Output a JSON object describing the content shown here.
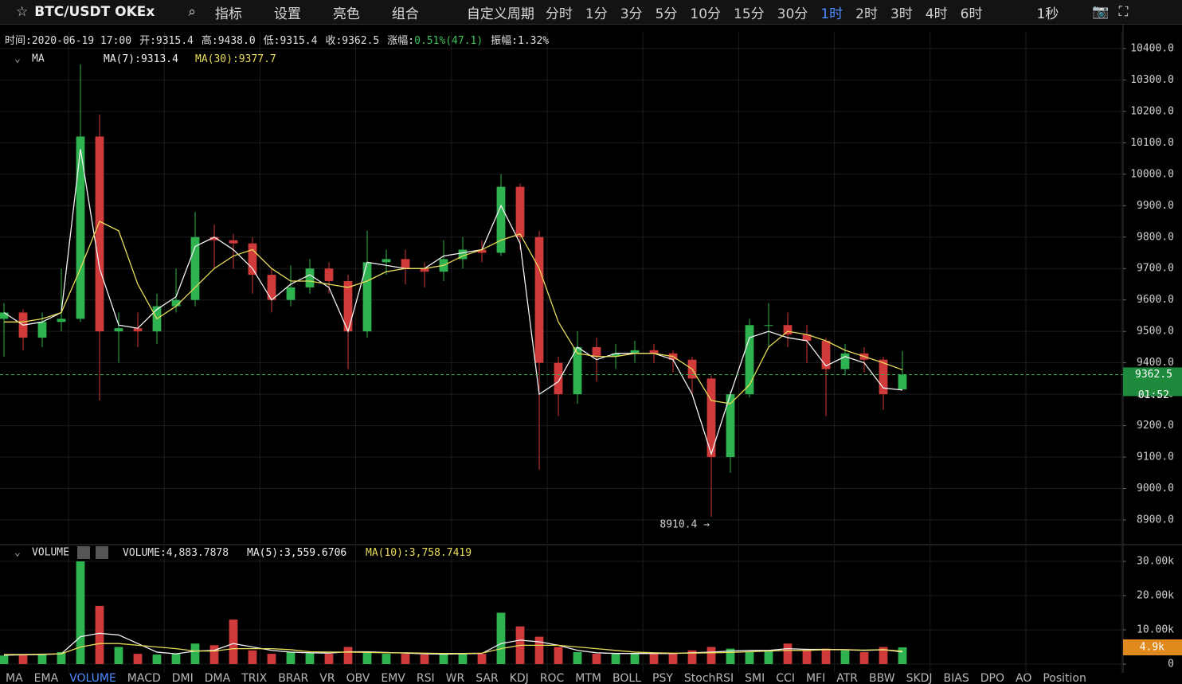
{
  "toolbar": {
    "symbol": "BTC/USDT OKEx",
    "tools": [
      "指标",
      "设置",
      "亮色",
      "组合"
    ],
    "custom_period": "自定义周期",
    "periods": [
      "分时",
      "1分",
      "3分",
      "5分",
      "10分",
      "15分",
      "30分",
      "1时",
      "2时",
      "3时",
      "4时",
      "6时"
    ],
    "active_period_index": 7,
    "refresh": "1秒"
  },
  "info": [
    {
      "label": "时间:",
      "value": "2020-06-19 17:00",
      "color": "#e0e0e0"
    },
    {
      "label": "开:",
      "value": "9315.4",
      "color": "#e0e0e0"
    },
    {
      "label": "高:",
      "value": "9438.0",
      "color": "#e0e0e0"
    },
    {
      "label": "低:",
      "value": "9315.4",
      "color": "#e0e0e0"
    },
    {
      "label": "收:",
      "value": "9362.5",
      "color": "#e0e0e0"
    },
    {
      "label": "涨幅:",
      "value": "0.51%(47.1)",
      "color": "#3bc25a"
    },
    {
      "label": "振幅:",
      "value": "1.32%",
      "color": "#e0e0e0"
    }
  ],
  "chart_data": {
    "type": "candlestick",
    "indicator": "MA",
    "up_color": "#2fb350",
    "down_color": "#d03a3a",
    "open": [
      9540,
      9560,
      9480,
      9530,
      9540,
      10120,
      9500,
      9510,
      9500,
      9580,
      9600,
      9800,
      9790,
      9780,
      9680,
      9600,
      9640,
      9700,
      9660,
      9500,
      9720,
      9730,
      9700,
      9690,
      9730,
      9760,
      9750,
      9960,
      9800,
      9400,
      9300,
      9450,
      9420,
      9430,
      9440,
      9430,
      9410,
      9350,
      9100,
      9300,
      9520,
      9520,
      9490,
      9470,
      9380,
      9430,
      9410,
      9315.4
    ],
    "high": [
      9590,
      9570,
      9560,
      9700,
      10350,
      10190,
      9560,
      9560,
      9620,
      9700,
      9880,
      9840,
      9810,
      9800,
      9700,
      9710,
      9730,
      9720,
      9680,
      9820,
      9760,
      9760,
      9720,
      9790,
      9800,
      9790,
      10000,
      9970,
      9820,
      9420,
      9500,
      9480,
      9460,
      9470,
      9460,
      9440,
      9420,
      9360,
      9310,
      9540,
      9590,
      9560,
      9520,
      9480,
      9460,
      9450,
      9420,
      9438
    ],
    "low": [
      9420,
      9440,
      9450,
      9500,
      9530,
      9280,
      9400,
      9450,
      9460,
      9560,
      9580,
      9700,
      9700,
      9620,
      9560,
      9580,
      9620,
      9620,
      9380,
      9480,
      9680,
      9650,
      9640,
      9660,
      9700,
      9720,
      9740,
      9760,
      9060,
      9230,
      9270,
      9340,
      9380,
      9400,
      9400,
      9370,
      9300,
      8910.4,
      9050,
      9290,
      9450,
      9450,
      9400,
      9230,
      9360,
      9370,
      9250,
      9315.4
    ],
    "close": [
      9560,
      9480,
      9530,
      9540,
      10120,
      9500,
      9510,
      9500,
      9580,
      9600,
      9800,
      9790,
      9780,
      9680,
      9600,
      9640,
      9700,
      9660,
      9500,
      9720,
      9730,
      9700,
      9690,
      9730,
      9760,
      9750,
      9960,
      9800,
      9400,
      9300,
      9450,
      9420,
      9430,
      9440,
      9430,
      9410,
      9350,
      9100,
      9300,
      9520,
      9520,
      9490,
      9470,
      9380,
      9430,
      9410,
      9300,
      9362.5
    ],
    "series": [
      {
        "name": "MA(7):",
        "legend_value": "9313.4",
        "color": "#f2f2f2",
        "values": [
          9560,
          9520,
          9530,
          9560,
          10080,
          9700,
          9520,
          9510,
          9570,
          9610,
          9770,
          9800,
          9760,
          9700,
          9600,
          9650,
          9680,
          9640,
          9500,
          9720,
          9710,
          9700,
          9700,
          9740,
          9750,
          9760,
          9900,
          9780,
          9300,
          9340,
          9450,
          9410,
          9430,
          9430,
          9430,
          9410,
          9300,
          9110,
          9300,
          9480,
          9500,
          9480,
          9470,
          9390,
          9420,
          9400,
          9320,
          9313.4
        ]
      },
      {
        "name": "MA(30):",
        "legend_value": "9377.7",
        "color": "#e8dc5a",
        "values": [
          9530,
          9530,
          9540,
          9560,
          9700,
          9850,
          9820,
          9650,
          9540,
          9580,
          9640,
          9700,
          9740,
          9760,
          9700,
          9660,
          9660,
          9650,
          9640,
          9660,
          9690,
          9700,
          9700,
          9710,
          9740,
          9760,
          9790,
          9810,
          9700,
          9530,
          9430,
          9420,
          9420,
          9430,
          9430,
          9420,
          9380,
          9280,
          9270,
          9330,
          9450,
          9500,
          9490,
          9470,
          9440,
          9420,
          9400,
          9377.7
        ]
      }
    ],
    "ylim": [
      8824,
      10453
    ],
    "yticks": [
      {
        "value": 8900,
        "label": "8900.0"
      },
      {
        "value": 9000,
        "label": "9000.0"
      },
      {
        "value": 9100,
        "label": "9100.0"
      },
      {
        "value": 9200,
        "label": "9200.0"
      },
      {
        "value": 9300,
        "label": "9300.0"
      },
      {
        "value": 9400,
        "label": "9400.0"
      },
      {
        "value": 9500,
        "label": "9500.0"
      },
      {
        "value": 9600,
        "label": "9600.0"
      },
      {
        "value": 9700,
        "label": "9700.0"
      },
      {
        "value": 9800,
        "label": "9800.0"
      },
      {
        "value": 9900,
        "label": "9900.0"
      },
      {
        "value": 10000,
        "label": "10000.0"
      },
      {
        "value": 10100,
        "label": "10100.0"
      },
      {
        "value": 10200,
        "label": "10200.0"
      },
      {
        "value": 10300,
        "label": "10300.0"
      },
      {
        "value": 10400,
        "label": "10400.0"
      }
    ],
    "countdown": "01:52",
    "low_annotation": "8910.4 →",
    "volume": {
      "title": "VOLUME",
      "legend_name": "VOLUME:",
      "legend_value": "4,883.7878",
      "values": [
        2500,
        2800,
        3000,
        3500,
        30000,
        17000,
        5000,
        3000,
        2800,
        3000,
        6000,
        5500,
        13000,
        4000,
        3000,
        3500,
        3200,
        3000,
        5000,
        3500,
        3000,
        3000,
        2800,
        3000,
        3200,
        3000,
        15000,
        11000,
        8000,
        5000,
        3500,
        3000,
        3000,
        3200,
        3000,
        3000,
        4000,
        5000,
        4500,
        3500,
        4000,
        6000,
        4000,
        4500,
        4000,
        3500,
        5000,
        4883.7878
      ],
      "last_label": "4.9k",
      "series": [
        {
          "name": "MA(5):",
          "legend_value": "3,559.6706",
          "color": "#f2f2f2",
          "values": [
            2600,
            2700,
            2800,
            3000,
            8000,
            9000,
            8500,
            6000,
            3500,
            3000,
            3800,
            4000,
            6000,
            5000,
            4000,
            3500,
            3300,
            3200,
            3600,
            3600,
            3400,
            3200,
            3000,
            2900,
            3000,
            3100,
            6000,
            7000,
            6500,
            5500,
            4000,
            3300,
            3100,
            3100,
            3100,
            3100,
            3300,
            3500,
            3800,
            4000,
            4000,
            4500,
            4300,
            4300,
            4200,
            4000,
            4200,
            3559.6706
          ]
        },
        {
          "name": "MA(10):",
          "legend_value": "3,758.7419",
          "color": "#e8dc5a",
          "values": [
            2800,
            2800,
            2900,
            3000,
            5000,
            6000,
            6000,
            5500,
            5000,
            4500,
            3800,
            3800,
            4500,
            4500,
            4500,
            4200,
            3600,
            3500,
            3500,
            3400,
            3300,
            3300,
            3200,
            3100,
            3100,
            3200,
            4500,
            5500,
            5500,
            5500,
            5000,
            4500,
            4000,
            3500,
            3300,
            3200,
            3200,
            3300,
            3400,
            3600,
            3800,
            4000,
            4000,
            4200,
            4200,
            4100,
            4200,
            3758.7419
          ]
        }
      ],
      "ylim": [
        -2560,
        34650
      ],
      "yticks": [
        0,
        {
          "value": 10000,
          "label": "10.00k"
        },
        {
          "value": 20000,
          "label": "20.00k"
        },
        {
          "value": 30000,
          "label": "30.00k"
        }
      ]
    },
    "grid": true
  },
  "tabs": {
    "items": [
      "MA",
      "EMA",
      "VOLUME",
      "MACD",
      "DMI",
      "DMA",
      "TRIX",
      "BRAR",
      "VR",
      "OBV",
      "EMV",
      "RSI",
      "WR",
      "SAR",
      "KDJ",
      "ROC",
      "MTM",
      "BOLL",
      "PSY",
      "StochRSI",
      "SMI",
      "CCI",
      "MFI",
      "ATR",
      "BBW",
      "SKDJ",
      "BIAS",
      "DPO",
      "AO",
      "Position"
    ],
    "active_index": 2
  }
}
